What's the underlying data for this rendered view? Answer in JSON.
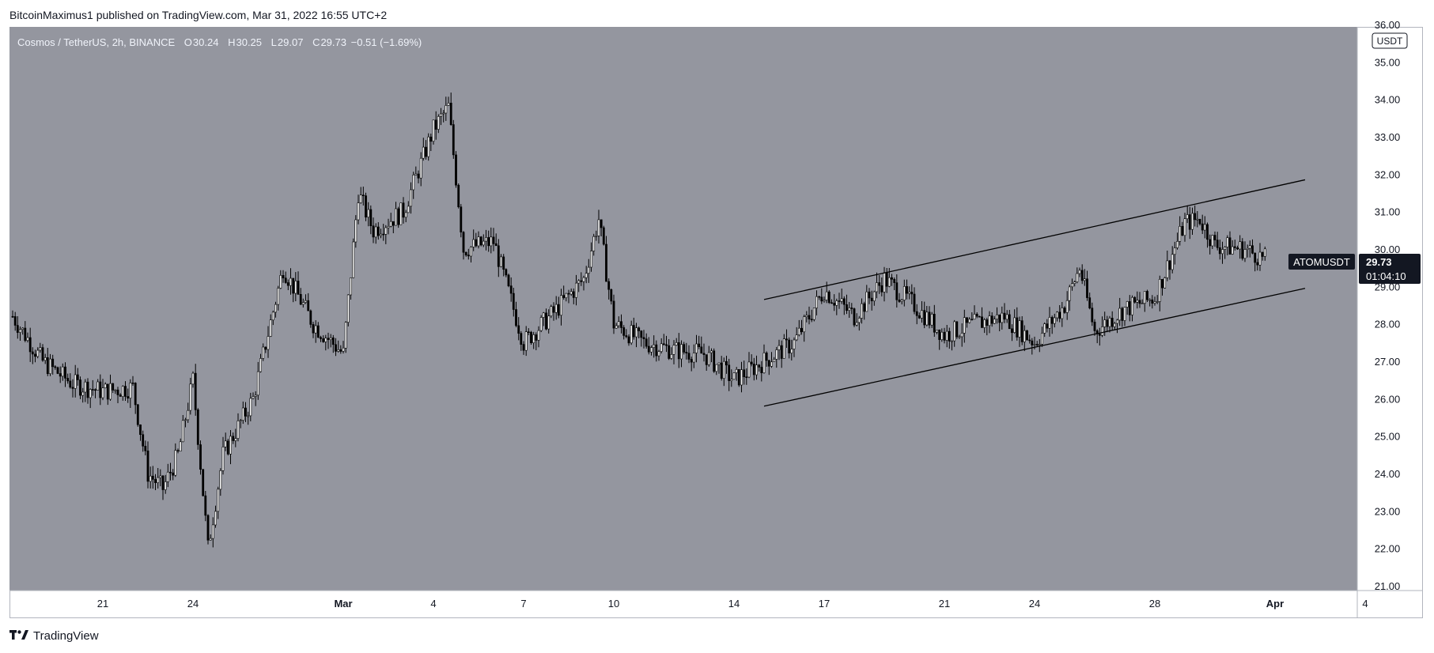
{
  "header": {
    "published_line": "BitcoinMaximus1 published on TradingView.com, Mar 31, 2022 16:55 UTC+2"
  },
  "legend": {
    "symbol_line": "Cosmos / TetherUS, 2h, BINANCE",
    "open_key": "O",
    "open": "30.24",
    "high_key": "H",
    "high": "30.25",
    "low_key": "L",
    "low": "29.07",
    "close_key": "C",
    "close": "29.73",
    "change": "−0.51 (−1.69%)"
  },
  "price_scale": {
    "currency_label": "USDT",
    "tick_labels": [
      "36.00",
      "35.00",
      "34.00",
      "33.00",
      "32.00",
      "31.00",
      "30.00",
      "29.00",
      "28.00",
      "27.00",
      "26.00",
      "25.00",
      "24.00",
      "23.00",
      "22.00",
      "21.00"
    ]
  },
  "price_badge": {
    "symbol": "ATOMUSDT",
    "price": "29.73",
    "countdown": "01:04:10"
  },
  "time_axis": {
    "tick_labels": [
      "21",
      "24",
      "Mar",
      "4",
      "7",
      "10",
      "14",
      "17",
      "21",
      "24",
      "28",
      "Apr",
      "4"
    ]
  },
  "footer": {
    "brand": "TradingView"
  },
  "colors": {
    "plot_background": "#94969f",
    "candle_body": "#ffffff",
    "candle_outline": "#000000",
    "channel_line": "#000000",
    "badge_background": "#131722",
    "legend_text": "#f0f3fa",
    "axis_text": "#131722"
  },
  "chart_data": {
    "type": "candlestick",
    "title": "Cosmos / TetherUS, 2h, BINANCE",
    "xlabel": "",
    "ylabel": "",
    "x_range": [
      "2022-02-18",
      "2022-04-04"
    ],
    "ylim": [
      21,
      36
    ],
    "grid": false,
    "y_axis_position": "right",
    "last_price": 29.73,
    "close_series": {
      "x": [
        "2022-02-18",
        "2022-02-19",
        "2022-02-20",
        "2022-02-21",
        "2022-02-22",
        "2022-02-22T12",
        "2022-02-23",
        "2022-02-23T12",
        "2022-02-24",
        "2022-02-24T12",
        "2022-02-25",
        "2022-02-26",
        "2022-02-27",
        "2022-02-28",
        "2022-03-01",
        "2022-03-01T12",
        "2022-03-02",
        "2022-03-03",
        "2022-03-04",
        "2022-03-04T12",
        "2022-03-05",
        "2022-03-06",
        "2022-03-07",
        "2022-03-08",
        "2022-03-09",
        "2022-03-09T12",
        "2022-03-10",
        "2022-03-11",
        "2022-03-12",
        "2022-03-13",
        "2022-03-14",
        "2022-03-15",
        "2022-03-16",
        "2022-03-17",
        "2022-03-18",
        "2022-03-19",
        "2022-03-20",
        "2022-03-21",
        "2022-03-22",
        "2022-03-23",
        "2022-03-24",
        "2022-03-25",
        "2022-03-25T12",
        "2022-03-26",
        "2022-03-27",
        "2022-03-28",
        "2022-03-29",
        "2022-03-29T12",
        "2022-03-30",
        "2022-03-31",
        "2022-03-31T16"
      ],
      "close": [
        28.2,
        27.0,
        26.4,
        26.2,
        26.3,
        24.0,
        23.6,
        24.5,
        26.5,
        22.0,
        24.5,
        26.0,
        29.5,
        28.0,
        27.2,
        31.5,
        30.5,
        31.0,
        33.2,
        33.8,
        30.0,
        30.2,
        27.5,
        28.3,
        29.2,
        30.8,
        28.0,
        27.5,
        27.3,
        27.2,
        26.5,
        27.0,
        27.5,
        28.9,
        28.2,
        29.2,
        28.5,
        27.7,
        28.0,
        28.2,
        27.5,
        28.5,
        29.5,
        27.8,
        28.4,
        28.7,
        30.7,
        30.8,
        30.1,
        30.0,
        29.73
      ]
    },
    "annotations": [
      {
        "type": "trend_line",
        "name": "channel-upper",
        "from": {
          "x": "2022-03-15",
          "y": 28.65
        },
        "to": {
          "x": "2022-04-02",
          "y": 31.85
        }
      },
      {
        "type": "trend_line",
        "name": "channel-lower",
        "from": {
          "x": "2022-03-15",
          "y": 25.8
        },
        "to": {
          "x": "2022-04-02",
          "y": 28.95
        }
      }
    ]
  }
}
